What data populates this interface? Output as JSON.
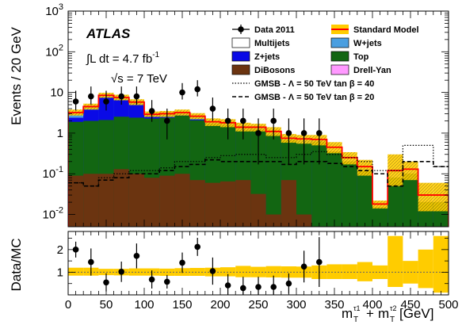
{
  "chart_data": [
    {
      "type": "bar",
      "plot": "main",
      "xlabel": "m_T^τ1 + m_T^τ2 [GeV]",
      "ylabel": "Events / 20 GeV",
      "xlim": [
        0,
        500
      ],
      "ylim": [
        0.005,
        1000
      ],
      "log_y": true,
      "legend_position": "top-right",
      "x_ticks": [
        "0",
        "50",
        "100",
        "150",
        "200",
        "250",
        "300",
        "350",
        "400",
        "450",
        "500"
      ],
      "y_ticks": [
        {
          "base": "10",
          "exp": "3"
        },
        {
          "base": "10",
          "exp": "2"
        },
        {
          "base": "10",
          "exp": ""
        },
        {
          "base": "1",
          "exp": ""
        },
        {
          "base": "10",
          "exp": "-1"
        },
        {
          "base": "10",
          "exp": "-2"
        }
      ],
      "annotations": {
        "experiment": "ATLAS",
        "lumi_prefix": "∫L dt = 4.7 fb",
        "lumi_exp": "-1",
        "energy": "√s = 7 TeV"
      },
      "bin_edges": [
        0,
        20,
        40,
        60,
        80,
        100,
        120,
        140,
        160,
        180,
        200,
        220,
        240,
        260,
        280,
        300,
        320,
        340,
        360,
        380,
        400,
        420,
        440,
        460,
        480,
        500
      ],
      "stack": [
        {
          "name": "DiBosons",
          "color": "#6b3410",
          "values": [
            0.09,
            0.1,
            0.1,
            0.13,
            0.1,
            0.08,
            0.09,
            0.1,
            0.07,
            0.06,
            0.065,
            0.07,
            0.032,
            0.01,
            0.07,
            0.01,
            0.0,
            0.0,
            0.0,
            0.0,
            0.0,
            0.0,
            0.0,
            0.0,
            0.0
          ]
        },
        {
          "name": "Top",
          "color": "#126612",
          "values": [
            1.8,
            1.9,
            2.0,
            2.4,
            2.3,
            2.2,
            2.3,
            2.6,
            2.0,
            1.6,
            1.5,
            1.1,
            1.2,
            0.9,
            0.6,
            0.55,
            0.6,
            0.35,
            0.2,
            0.12,
            0.015,
            0.08,
            0.1,
            0.02,
            0.02
          ]
        },
        {
          "name": "Z+jets",
          "color": "#0a0ae6",
          "values": [
            0.5,
            1.8,
            5.5,
            4.0,
            2.5,
            0.3,
            0.1,
            0.1,
            0.1,
            0.05,
            0.0,
            0.0,
            0.0,
            0.0,
            0.0,
            0.0,
            0.0,
            0.0,
            0.0,
            0.0,
            0.0,
            0.0,
            0.0,
            0.0,
            0.0
          ]
        },
        {
          "name": "W+jets",
          "color": "#4b9fe0",
          "values": [
            0.5,
            0.5,
            0.4,
            0.6,
            0.6,
            0.3,
            0.4,
            0.3,
            0.3,
            0.1,
            0.1,
            0.1,
            0.1,
            0.1,
            0.1,
            0.1,
            0.05,
            0.0,
            0.0,
            0.0,
            0.0,
            0.0,
            0.0,
            0.0,
            0.0
          ]
        },
        {
          "name": "Multijets",
          "color": "#ffffff",
          "values": [
            0.05,
            0.05,
            0.05,
            0.05,
            0.05,
            0.05,
            0.05,
            0.05,
            0.05,
            0.05,
            0.05,
            0.05,
            0.05,
            0.05,
            0.05,
            0.05,
            0.05,
            0.0,
            0.0,
            0.0,
            0.0,
            0.0,
            0.0,
            0.0,
            0.0
          ]
        },
        {
          "name": "Drell-Yan",
          "color": "#ff99ff",
          "values": [
            0.0,
            0.0,
            0.0,
            0.0,
            0.0,
            0.0,
            0.0,
            0.0,
            0.0,
            0.0,
            0.0,
            0.0,
            0.0,
            0.0,
            0.0,
            0.0,
            0.0,
            0.0,
            0.0,
            0.0,
            0.0,
            0.0,
            0.0,
            0.0,
            0.0
          ]
        }
      ],
      "sm_total": {
        "name": "Standard Model",
        "color": "#ff0000",
        "band_color": "#ffcc00",
        "values": [
          3.2,
          4.5,
          8.5,
          7.5,
          5.8,
          2.9,
          3.0,
          3.2,
          2.6,
          1.9,
          1.8,
          1.4,
          1.4,
          1.1,
          0.75,
          0.72,
          0.7,
          0.45,
          0.25,
          0.15,
          0.018,
          0.12,
          0.13,
          0.03,
          0.03
        ],
        "unc_up": [
          3.8,
          5.3,
          9.8,
          8.8,
          6.8,
          3.4,
          3.5,
          3.8,
          3.1,
          2.3,
          2.2,
          1.8,
          1.7,
          1.4,
          0.95,
          0.9,
          0.9,
          0.6,
          0.34,
          0.22,
          0.022,
          0.3,
          0.2,
          0.06,
          0.06
        ],
        "unc_down": [
          2.7,
          3.8,
          7.4,
          6.4,
          4.9,
          2.5,
          2.5,
          2.7,
          2.2,
          1.5,
          1.4,
          1.1,
          1.1,
          0.85,
          0.58,
          0.55,
          0.5,
          0.32,
          0.17,
          0.09,
          0.014,
          0.05,
          0.07,
          0.012,
          0.012
        ]
      },
      "data": {
        "name": "Data 2011",
        "color": "#000000",
        "x": [
          10,
          30,
          50,
          70,
          90,
          110,
          130,
          150,
          170,
          190,
          210,
          230,
          250,
          270,
          290,
          310,
          330
        ],
        "y": [
          6,
          8,
          6,
          8,
          8,
          3.5,
          2,
          10,
          12,
          4,
          2,
          2,
          1,
          2,
          1,
          1,
          1
        ],
        "yerr_up": [
          11,
          14,
          11,
          14,
          14,
          6.5,
          4,
          17,
          20,
          7.5,
          4,
          4,
          2.3,
          4,
          2.3,
          2.3,
          2.3
        ],
        "yerr_down": [
          3.6,
          5,
          3.6,
          5,
          5,
          1.9,
          0.7,
          6.7,
          8,
          2,
          0.7,
          0.7,
          0.17,
          0.7,
          0.17,
          0.17,
          0.17
        ]
      },
      "signals": [
        {
          "name": "GMSB - Λ = 50 TeV tan β = 40",
          "style": "dotted",
          "values": [
            0.06,
            0.05,
            0.08,
            0.1,
            0.12,
            0.12,
            0.14,
            0.2,
            0.2,
            0.25,
            0.28,
            0.3,
            0.3,
            0.25,
            0.25,
            0.3,
            0.35,
            0.3,
            0.25,
            0.2,
            0.12,
            0.12,
            0.5,
            0.5,
            0.15
          ]
        },
        {
          "name": "GMSB - Λ = 50 TeV tan β = 20",
          "style": "dashed",
          "values": [
            0.06,
            0.05,
            0.07,
            0.08,
            0.1,
            0.1,
            0.12,
            0.15,
            0.17,
            0.22,
            0.2,
            0.2,
            0.2,
            0.2,
            0.17,
            0.2,
            0.2,
            0.18,
            0.15,
            0.12,
            0.1,
            0.05,
            0.2,
            0.2,
            0.15
          ]
        }
      ]
    },
    {
      "type": "scatter",
      "plot": "ratio",
      "xlabel": "m_T^τ1 + m_T^τ2 [GeV]",
      "ylabel": "Data/MC",
      "xlim": [
        0,
        500
      ],
      "ylim": [
        0,
        2.8
      ],
      "y_ticks": [
        "1",
        "2"
      ],
      "reference_line": 1,
      "x": [
        10,
        30,
        50,
        70,
        90,
        110,
        130,
        150,
        170,
        190,
        210,
        230,
        250,
        270,
        290,
        310,
        330
      ],
      "y": [
        2.0,
        1.45,
        0.55,
        1.02,
        1.72,
        0.68,
        0.58,
        1.42,
        2.12,
        1.05,
        0.42,
        0.3,
        0.35,
        0.35,
        0.5,
        1.25,
        1.45
      ],
      "yerr": [
        0.35,
        0.6,
        0.4,
        0.45,
        0.55,
        0.4,
        0.3,
        0.45,
        0.4,
        0.6,
        0.5,
        0.5,
        0.45,
        0.5,
        0.45,
        0.7,
        1.1
      ],
      "band_up": [
        1.2,
        1.2,
        1.15,
        1.15,
        1.17,
        1.17,
        1.16,
        1.18,
        1.19,
        1.2,
        1.22,
        1.28,
        1.24,
        1.27,
        1.26,
        1.25,
        1.3,
        1.35,
        1.35,
        1.45,
        1.3,
        2.6,
        1.5,
        2.0,
        2.6
      ],
      "band_down": [
        0.85,
        0.85,
        0.87,
        0.86,
        0.85,
        0.85,
        0.84,
        0.84,
        0.84,
        0.82,
        0.82,
        0.78,
        0.78,
        0.77,
        0.76,
        0.76,
        0.7,
        0.7,
        0.7,
        0.6,
        0.7,
        0.35,
        0.5,
        0.3,
        0.1
      ]
    }
  ],
  "legend": {
    "left": [
      {
        "label": "Data 2011",
        "kind": "marker"
      },
      {
        "label": "Multijets",
        "kind": "box",
        "color": "#ffffff"
      },
      {
        "label": "Z+jets",
        "kind": "box",
        "color": "#0a0ae6"
      },
      {
        "label": "DiBosons",
        "kind": "box",
        "color": "#6b3410"
      }
    ],
    "right": [
      {
        "label": "Standard Model",
        "kind": "sm",
        "color": "#ffcc00"
      },
      {
        "label": "W+jets",
        "kind": "box",
        "color": "#4b9fe0"
      },
      {
        "label": "Top",
        "kind": "box",
        "color": "#126612"
      },
      {
        "label": "Drell-Yan",
        "kind": "box",
        "color": "#ff99ff"
      }
    ],
    "signals": [
      {
        "label": "GMSB - Λ = 50 TeV tan β = 40",
        "style": "dotted"
      },
      {
        "label": "GMSB - Λ = 50 TeV tan β = 20",
        "style": "dashed"
      }
    ]
  }
}
